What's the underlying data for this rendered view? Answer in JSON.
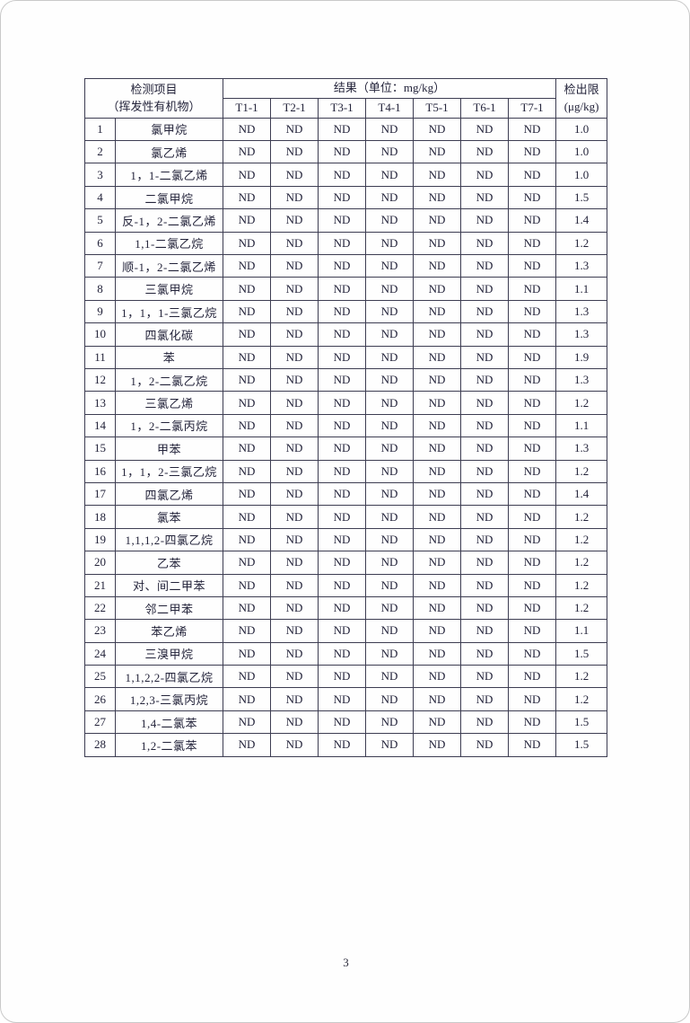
{
  "page": {
    "number": "3"
  },
  "table": {
    "header": {
      "item_label_line1": "检测项目",
      "item_label_line2": "（挥发性有机物）",
      "result_label": "结果（单位：mg/kg）",
      "sample_columns": [
        "T1-1",
        "T2-1",
        "T3-1",
        "T4-1",
        "T5-1",
        "T6-1",
        "T7-1"
      ],
      "detection_limit_line1": "检出限",
      "detection_limit_line2": "(μg/kg)"
    },
    "rows": [
      {
        "no": "1",
        "name": "氯甲烷",
        "results": [
          "ND",
          "ND",
          "ND",
          "ND",
          "ND",
          "ND",
          "ND"
        ],
        "limit": "1.0"
      },
      {
        "no": "2",
        "name": "氯乙烯",
        "results": [
          "ND",
          "ND",
          "ND",
          "ND",
          "ND",
          "ND",
          "ND"
        ],
        "limit": "1.0"
      },
      {
        "no": "3",
        "name": "1，1-二氯乙烯",
        "results": [
          "ND",
          "ND",
          "ND",
          "ND",
          "ND",
          "ND",
          "ND"
        ],
        "limit": "1.0"
      },
      {
        "no": "4",
        "name": "二氯甲烷",
        "results": [
          "ND",
          "ND",
          "ND",
          "ND",
          "ND",
          "ND",
          "ND"
        ],
        "limit": "1.5"
      },
      {
        "no": "5",
        "name": "反-1，2-二氯乙烯",
        "results": [
          "ND",
          "ND",
          "ND",
          "ND",
          "ND",
          "ND",
          "ND"
        ],
        "limit": "1.4"
      },
      {
        "no": "6",
        "name": "1,1-二氯乙烷",
        "results": [
          "ND",
          "ND",
          "ND",
          "ND",
          "ND",
          "ND",
          "ND"
        ],
        "limit": "1.2"
      },
      {
        "no": "7",
        "name": "顺-1，2-二氯乙烯",
        "results": [
          "ND",
          "ND",
          "ND",
          "ND",
          "ND",
          "ND",
          "ND"
        ],
        "limit": "1.3"
      },
      {
        "no": "8",
        "name": "三氯甲烷",
        "results": [
          "ND",
          "ND",
          "ND",
          "ND",
          "ND",
          "ND",
          "ND"
        ],
        "limit": "1.1"
      },
      {
        "no": "9",
        "name": "1，1，1-三氯乙烷",
        "results": [
          "ND",
          "ND",
          "ND",
          "ND",
          "ND",
          "ND",
          "ND"
        ],
        "limit": "1.3"
      },
      {
        "no": "10",
        "name": "四氯化碳",
        "results": [
          "ND",
          "ND",
          "ND",
          "ND",
          "ND",
          "ND",
          "ND"
        ],
        "limit": "1.3"
      },
      {
        "no": "11",
        "name": "苯",
        "results": [
          "ND",
          "ND",
          "ND",
          "ND",
          "ND",
          "ND",
          "ND"
        ],
        "limit": "1.9"
      },
      {
        "no": "12",
        "name": "1，2-二氯乙烷",
        "results": [
          "ND",
          "ND",
          "ND",
          "ND",
          "ND",
          "ND",
          "ND"
        ],
        "limit": "1.3"
      },
      {
        "no": "13",
        "name": "三氯乙烯",
        "results": [
          "ND",
          "ND",
          "ND",
          "ND",
          "ND",
          "ND",
          "ND"
        ],
        "limit": "1.2"
      },
      {
        "no": "14",
        "name": "1，2-二氯丙烷",
        "results": [
          "ND",
          "ND",
          "ND",
          "ND",
          "ND",
          "ND",
          "ND"
        ],
        "limit": "1.1"
      },
      {
        "no": "15",
        "name": "甲苯",
        "results": [
          "ND",
          "ND",
          "ND",
          "ND",
          "ND",
          "ND",
          "ND"
        ],
        "limit": "1.3"
      },
      {
        "no": "16",
        "name": "1，1，2-三氯乙烷",
        "results": [
          "ND",
          "ND",
          "ND",
          "ND",
          "ND",
          "ND",
          "ND"
        ],
        "limit": "1.2"
      },
      {
        "no": "17",
        "name": "四氯乙烯",
        "results": [
          "ND",
          "ND",
          "ND",
          "ND",
          "ND",
          "ND",
          "ND"
        ],
        "limit": "1.4"
      },
      {
        "no": "18",
        "name": "氯苯",
        "results": [
          "ND",
          "ND",
          "ND",
          "ND",
          "ND",
          "ND",
          "ND"
        ],
        "limit": "1.2"
      },
      {
        "no": "19",
        "name": "1,1,1,2-四氯乙烷",
        "results": [
          "ND",
          "ND",
          "ND",
          "ND",
          "ND",
          "ND",
          "ND"
        ],
        "limit": "1.2"
      },
      {
        "no": "20",
        "name": "乙苯",
        "results": [
          "ND",
          "ND",
          "ND",
          "ND",
          "ND",
          "ND",
          "ND"
        ],
        "limit": "1.2"
      },
      {
        "no": "21",
        "name": "对、间二甲苯",
        "results": [
          "ND",
          "ND",
          "ND",
          "ND",
          "ND",
          "ND",
          "ND"
        ],
        "limit": "1.2"
      },
      {
        "no": "22",
        "name": "邻二甲苯",
        "results": [
          "ND",
          "ND",
          "ND",
          "ND",
          "ND",
          "ND",
          "ND"
        ],
        "limit": "1.2"
      },
      {
        "no": "23",
        "name": "苯乙烯",
        "results": [
          "ND",
          "ND",
          "ND",
          "ND",
          "ND",
          "ND",
          "ND"
        ],
        "limit": "1.1"
      },
      {
        "no": "24",
        "name": "三溴甲烷",
        "results": [
          "ND",
          "ND",
          "ND",
          "ND",
          "ND",
          "ND",
          "ND"
        ],
        "limit": "1.5"
      },
      {
        "no": "25",
        "name": "1,1,2,2-四氯乙烷",
        "results": [
          "ND",
          "ND",
          "ND",
          "ND",
          "ND",
          "ND",
          "ND"
        ],
        "limit": "1.2"
      },
      {
        "no": "26",
        "name": "1,2,3-三氯丙烷",
        "results": [
          "ND",
          "ND",
          "ND",
          "ND",
          "ND",
          "ND",
          "ND"
        ],
        "limit": "1.2"
      },
      {
        "no": "27",
        "name": "1,4-二氯苯",
        "results": [
          "ND",
          "ND",
          "ND",
          "ND",
          "ND",
          "ND",
          "ND"
        ],
        "limit": "1.5"
      },
      {
        "no": "28",
        "name": "1,2-二氯苯",
        "results": [
          "ND",
          "ND",
          "ND",
          "ND",
          "ND",
          "ND",
          "ND"
        ],
        "limit": "1.5"
      }
    ]
  }
}
